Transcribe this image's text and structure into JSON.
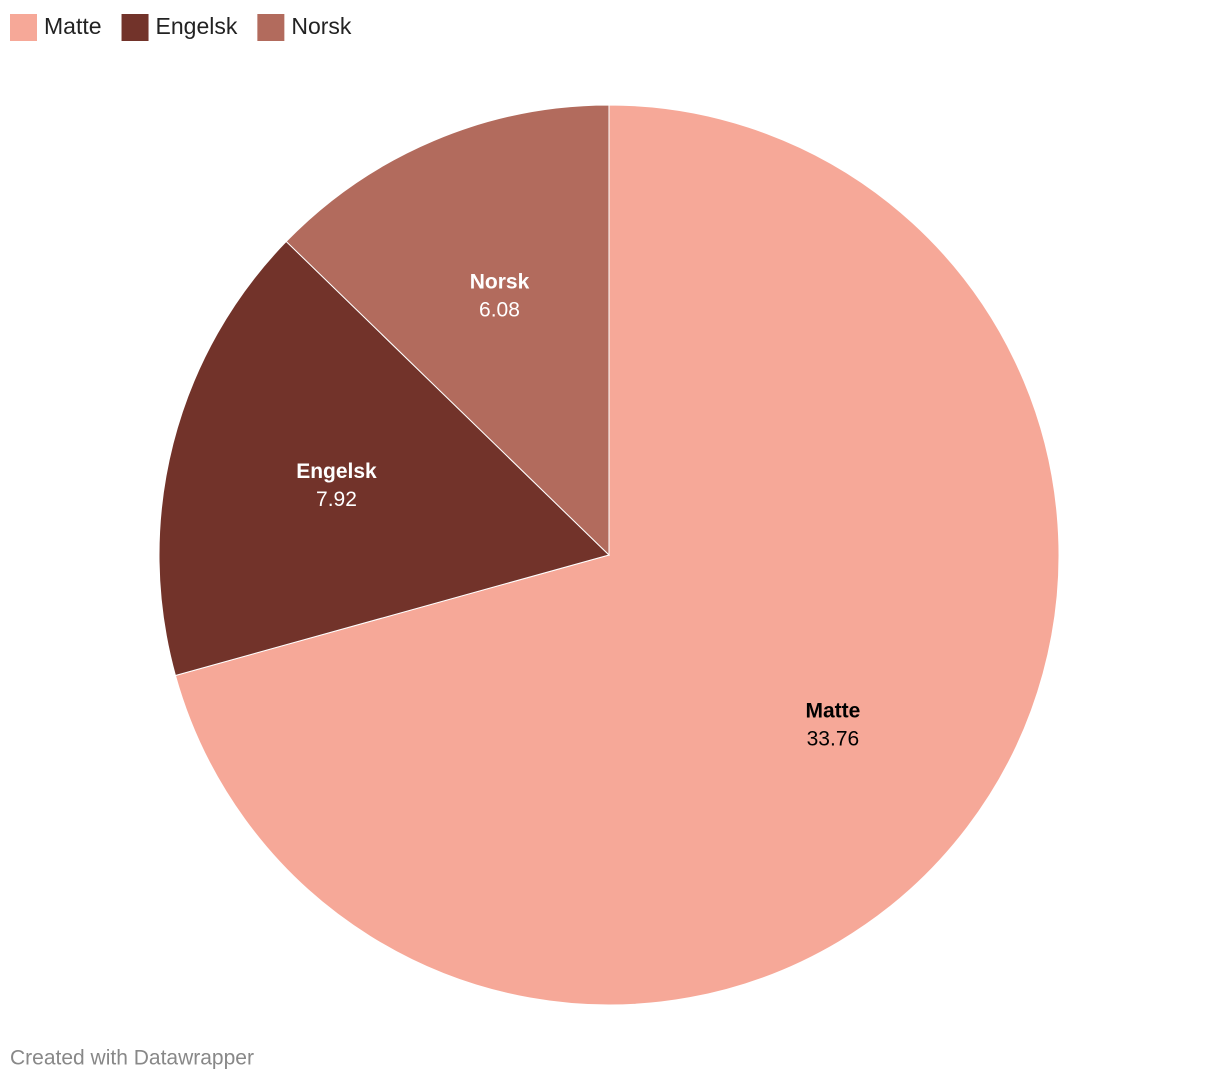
{
  "chart_data": {
    "type": "pie",
    "categories": [
      "Matte",
      "Engelsk",
      "Norsk"
    ],
    "values": [
      33.76,
      7.92,
      6.08
    ],
    "colors": [
      "#f6a898",
      "#72332a",
      "#b26b5d"
    ],
    "label_colors": [
      "#000000",
      "#ffffff",
      "#ffffff"
    ],
    "legend": "top-left",
    "credit": "Created with Datawrapper"
  }
}
